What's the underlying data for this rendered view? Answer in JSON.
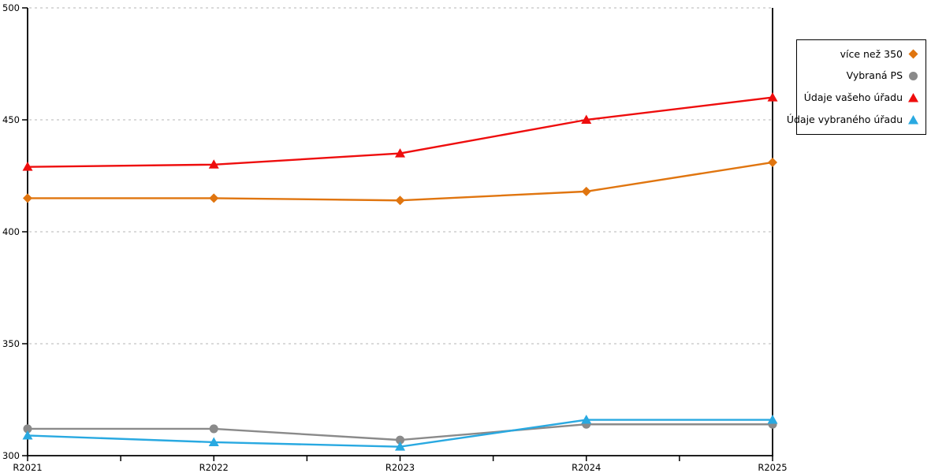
{
  "chart_data": {
    "type": "line",
    "title": "",
    "xlabel": "",
    "ylabel": "",
    "categories": [
      "R2021",
      "R2022",
      "R2023",
      "R2024",
      "R2025"
    ],
    "series": [
      {
        "name": "více než 350",
        "color": "#e0750f",
        "marker": "diamond",
        "values": [
          415,
          415,
          414,
          418,
          431
        ]
      },
      {
        "name": "Vybraná PS",
        "color": "#8a8a8a",
        "marker": "circle",
        "values": [
          312,
          312,
          307,
          314,
          314
        ]
      },
      {
        "name": "Údaje vašeho úřadu",
        "color": "#ee0d0d",
        "marker": "triangle",
        "values": [
          429,
          430,
          435,
          450,
          460
        ]
      },
      {
        "name": "Údaje vybraného úřadu",
        "color": "#29a9e1",
        "marker": "triangle",
        "values": [
          309,
          306,
          304,
          316,
          316
        ]
      }
    ],
    "ylim": [
      300,
      500
    ],
    "yticks": [
      300,
      350,
      400,
      450,
      500
    ],
    "grid": "horizontal-dashed",
    "grid_color": "#c4c4c4",
    "axis_color": "#000000",
    "legend_position": "right-outside"
  }
}
